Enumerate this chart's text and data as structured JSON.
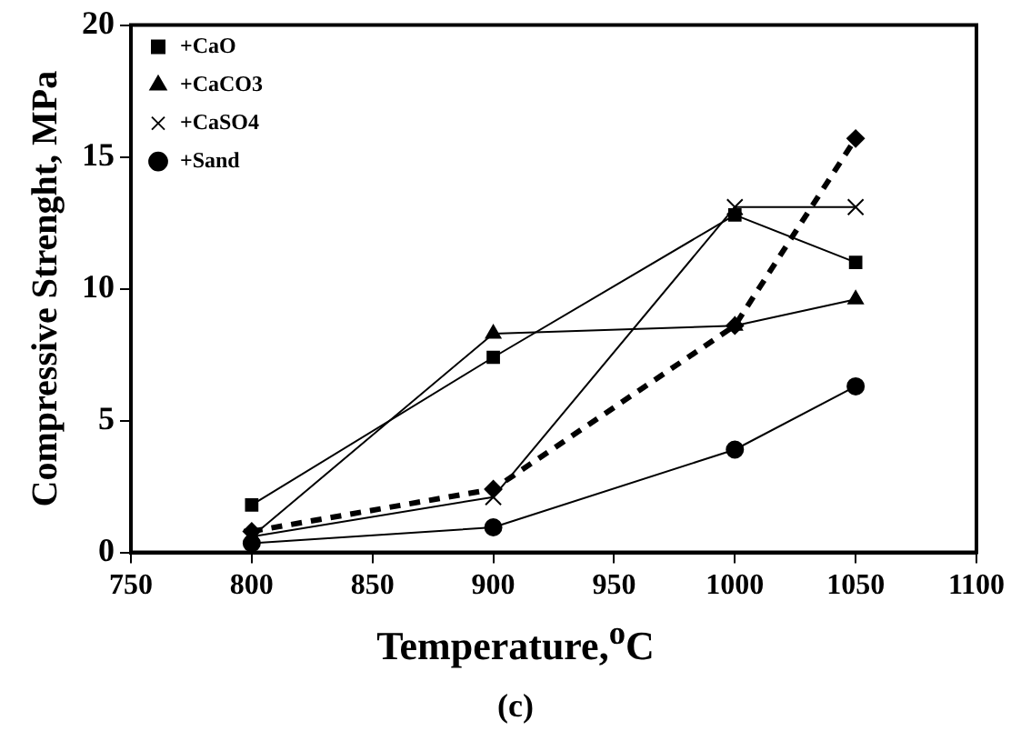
{
  "chart_data": {
    "type": "line",
    "xlabel": "Temperature,$^{o}$C",
    "ylabel": "Compressive Strenght, MPa",
    "x": [
      800,
      900,
      1000,
      1050
    ],
    "series": [
      {
        "color": "#000000",
        "marker": "diamond",
        "line_style": "dashed",
        "values": [
          0.8,
          2.4,
          8.6,
          15.7
        ]
      },
      {
        "name": "+CaO",
        "color": "#000000",
        "marker": "square",
        "line_style": "solid",
        "values": [
          1.8,
          7.4,
          12.8,
          11.0
        ]
      },
      {
        "name": "+CaCO3",
        "color": "#000000",
        "marker": "triangle",
        "line_style": "solid",
        "values": [
          0.6,
          8.3,
          8.6,
          9.6
        ]
      },
      {
        "name": "+CaSO4",
        "color": "#000000",
        "marker": "cross",
        "line_style": "solid",
        "values": [
          0.6,
          2.1,
          13.1,
          13.1
        ]
      },
      {
        "name": "+Sand",
        "color": "#000000",
        "marker": "circle",
        "line_style": "solid",
        "values": [
          0.35,
          0.95,
          3.9,
          6.3
        ]
      }
    ],
    "xlim": [
      750,
      1100
    ],
    "xticks": [
      750,
      800,
      850,
      900,
      950,
      1000,
      1050,
      1100
    ],
    "ylim": [
      0,
      20
    ],
    "yticks": [
      0,
      5,
      10,
      15,
      20
    ],
    "grid": false,
    "legend": "top left",
    "annotations": [
      "(c)"
    ]
  }
}
